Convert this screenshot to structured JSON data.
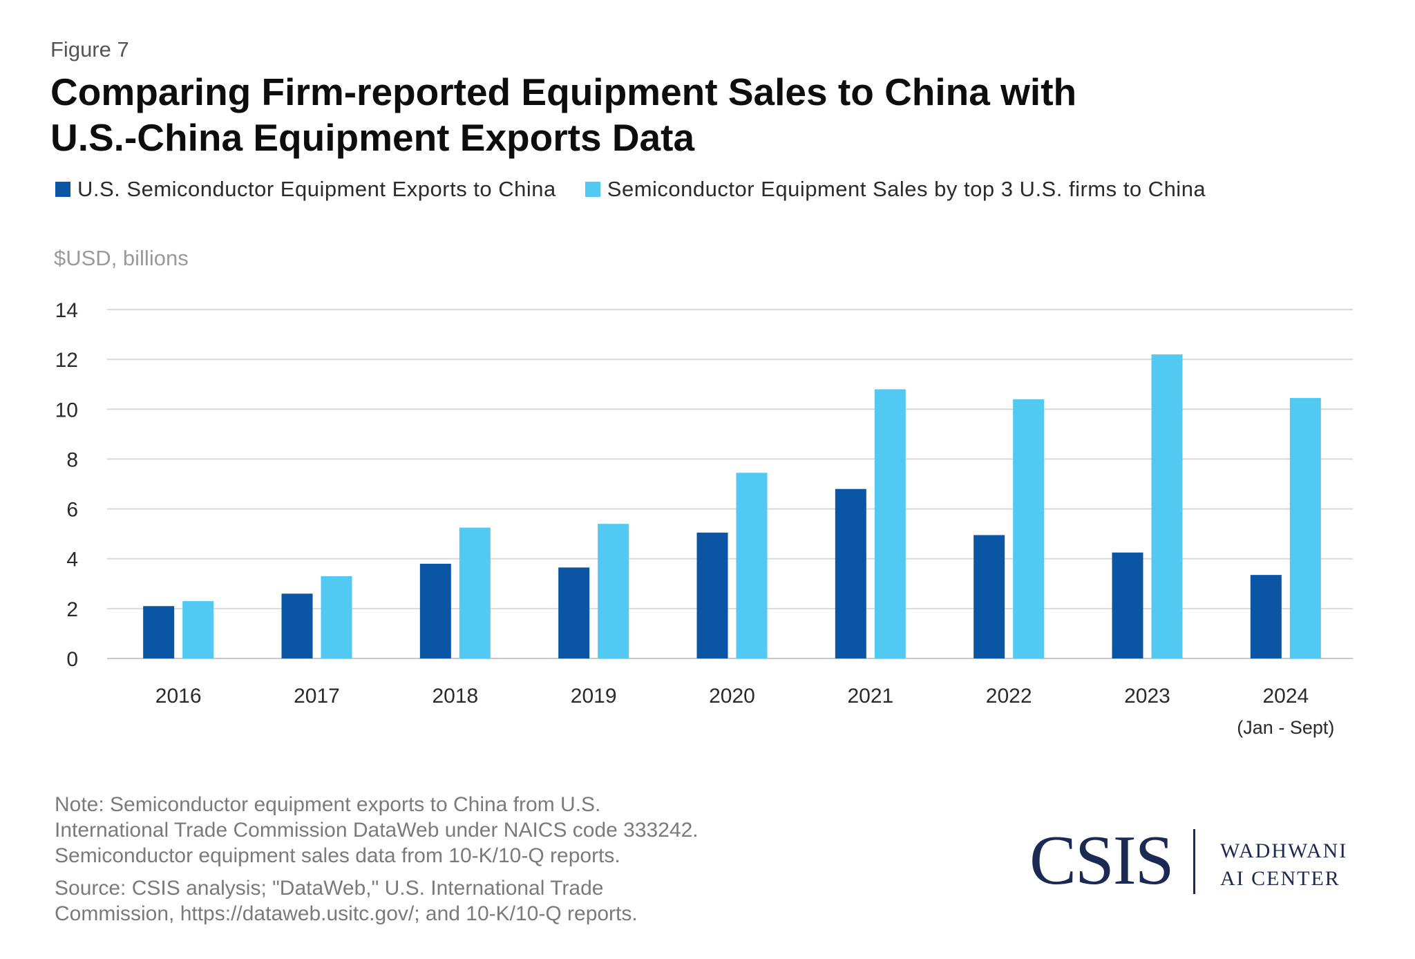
{
  "figure_label": "Figure 7",
  "title_lines": [
    "Comparing Firm-reported Equipment Sales to China with",
    "U.S.-China Equipment Exports Data"
  ],
  "legend": [
    {
      "label": "U.S. Semiconductor Equipment Exports to China",
      "color": "#0b56a4"
    },
    {
      "label": "Semiconductor Equipment Sales by top 3 U.S. firms to China",
      "color": "#52c9f2"
    }
  ],
  "unit_label": "$USD, billions",
  "chart_data": {
    "type": "bar",
    "categories": [
      "2016",
      "2017",
      "2018",
      "2019",
      "2020",
      "2021",
      "2022",
      "2023",
      "2024"
    ],
    "category_notes": [
      "",
      "",
      "",
      "",
      "",
      "",
      "",
      "",
      "(Jan - Sept)"
    ],
    "series": [
      {
        "name": "U.S. Semiconductor Equipment Exports to China",
        "color": "#0b56a4",
        "values": [
          2.1,
          2.6,
          3.8,
          3.65,
          5.05,
          6.8,
          4.95,
          4.25,
          3.35
        ]
      },
      {
        "name": "Semiconductor Equipment Sales by top 3 U.S. firms to China",
        "color": "#52c9f2",
        "values": [
          2.3,
          3.3,
          5.25,
          5.4,
          7.45,
          10.8,
          10.4,
          12.2,
          10.45
        ]
      }
    ],
    "ylim": [
      0,
      14
    ],
    "yticks": [
      0,
      2,
      4,
      6,
      8,
      10,
      12,
      14
    ],
    "grid": true,
    "legend_position": "top-left"
  },
  "note_lines": [
    "Note: Semiconductor equipment exports to China from U.S.",
    "International Trade Commission DataWeb under NAICS code 333242.",
    "Semiconductor equipment sales data from 10-K/10-Q reports."
  ],
  "source_lines": [
    "Source: CSIS analysis; \"DataWeb,\" U.S. International Trade",
    "Commission, https://dataweb.usitc.gov/; and 10-K/10-Q reports."
  ],
  "logo": {
    "main": "CSIS",
    "center_lines": [
      "WADHWANI",
      "AI CENTER"
    ]
  }
}
